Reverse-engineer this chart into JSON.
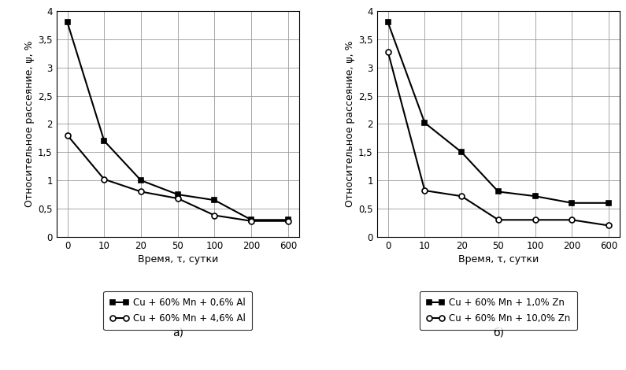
{
  "left": {
    "x_positions": [
      0,
      1,
      2,
      3,
      4,
      5,
      6
    ],
    "x_labels": [
      "0",
      "10",
      "20",
      "50",
      "100",
      "200",
      "600"
    ],
    "series1": {
      "y": [
        3.8,
        1.7,
        1.0,
        0.75,
        0.65,
        0.3,
        0.3
      ],
      "label": "Cu + 60% Mn + 0,6% Al",
      "marker": "s",
      "color": "#000000",
      "linewidth": 1.5,
      "markersize": 5,
      "markerfacecolor": "#000000"
    },
    "series2": {
      "y": [
        1.8,
        1.02,
        0.8,
        0.68,
        0.38,
        0.28,
        0.28
      ],
      "label": "Cu + 60% Mn + 4,6% Al",
      "marker": "o",
      "color": "#000000",
      "linewidth": 1.5,
      "markersize": 5,
      "markerfacecolor": "#ffffff"
    },
    "ylabel": "Относительное рассеяние, ψ, %",
    "xlabel": "Время, τ, сутки",
    "title_label": "а)",
    "ylim": [
      0,
      4
    ],
    "yticks": [
      0,
      0.5,
      1,
      1.5,
      2,
      2.5,
      3,
      3.5,
      4
    ],
    "ytick_labels": [
      "0",
      "0,5",
      "1",
      "1,5",
      "2",
      "2,5",
      "3",
      "3,5",
      "4"
    ]
  },
  "right": {
    "x_positions": [
      0,
      1,
      2,
      3,
      4,
      5,
      6
    ],
    "x_labels": [
      "0",
      "10",
      "20",
      "50",
      "100",
      "200",
      "600"
    ],
    "series1": {
      "y": [
        3.8,
        2.02,
        1.5,
        0.8,
        0.72,
        0.6,
        0.6
      ],
      "label": "Cu + 60% Mn + 1,0% Zn",
      "marker": "s",
      "color": "#000000",
      "linewidth": 1.5,
      "markersize": 5,
      "markerfacecolor": "#000000"
    },
    "series2": {
      "y": [
        3.28,
        0.82,
        0.72,
        0.3,
        0.3,
        0.3,
        0.2
      ],
      "label": "Cu + 60% Mn + 10,0% Zn",
      "marker": "o",
      "color": "#000000",
      "linewidth": 1.5,
      "markersize": 5,
      "markerfacecolor": "#ffffff"
    },
    "ylabel": "Относительное рассеяние, ψ, %",
    "xlabel": "Время, τ, сутки",
    "title_label": "б)",
    "ylim": [
      0,
      4
    ],
    "yticks": [
      0,
      0.5,
      1,
      1.5,
      2,
      2.5,
      3,
      3.5,
      4
    ],
    "ytick_labels": [
      "0",
      "0,5",
      "1",
      "1,5",
      "2",
      "2,5",
      "3",
      "3,5",
      "4"
    ]
  },
  "background_color": "#ffffff",
  "grid_color": "#999999",
  "font_color": "#000000",
  "axis_font_size": 8.5,
  "legend_font_size": 8.5,
  "label_font_size": 9,
  "title_font_size": 10
}
